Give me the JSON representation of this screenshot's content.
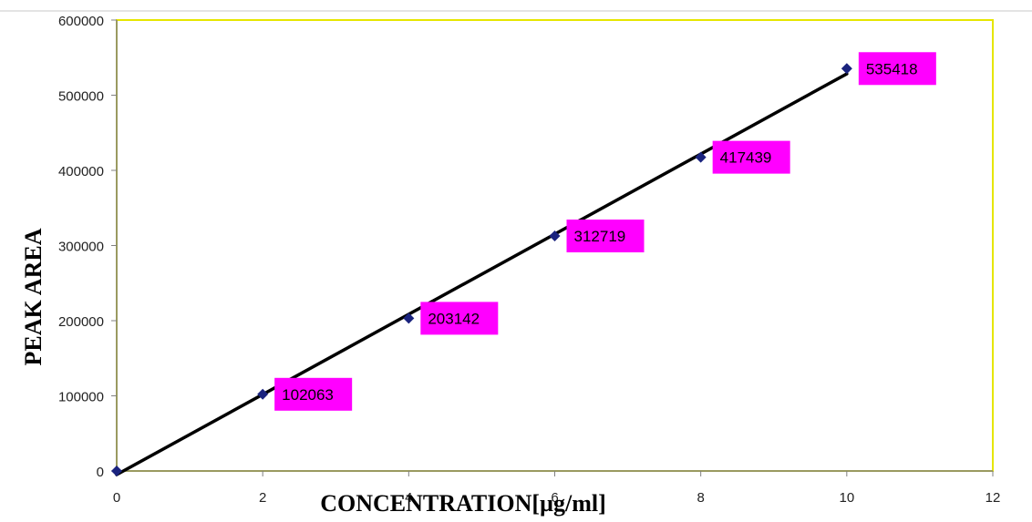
{
  "chart_data": {
    "type": "scatter",
    "title": "",
    "xlabel": "CONCENTRATION[µg/ml]",
    "ylabel": "PEAK AREA",
    "xlim": [
      0,
      12
    ],
    "ylim": [
      0,
      600000
    ],
    "x_ticks": [
      "0",
      "2",
      "4",
      "6",
      "8",
      "10",
      "12"
    ],
    "y_ticks": [
      "0",
      "100000",
      "200000",
      "300000",
      "400000",
      "500000",
      "600000"
    ],
    "grid": false,
    "legend": "none",
    "series": [
      {
        "points": [
          {
            "x": 0,
            "y": 0,
            "label": ""
          },
          {
            "x": 2,
            "y": 102063,
            "label": "102063"
          },
          {
            "x": 4,
            "y": 203142,
            "label": "203142"
          },
          {
            "x": 6,
            "y": 312719,
            "label": "312719"
          },
          {
            "x": 8,
            "y": 417439,
            "label": "417439"
          },
          {
            "x": 10,
            "y": 535418,
            "label": "535418"
          }
        ],
        "marker": "diamond",
        "marker_color": "#1a237e"
      }
    ],
    "trendline": {
      "type": "linear",
      "x_range": [
        0,
        10
      ],
      "color": "#000000"
    },
    "colors": {
      "plot_border": "#e6e600",
      "label_background": "#ff00ff",
      "axis": "#808080"
    }
  }
}
